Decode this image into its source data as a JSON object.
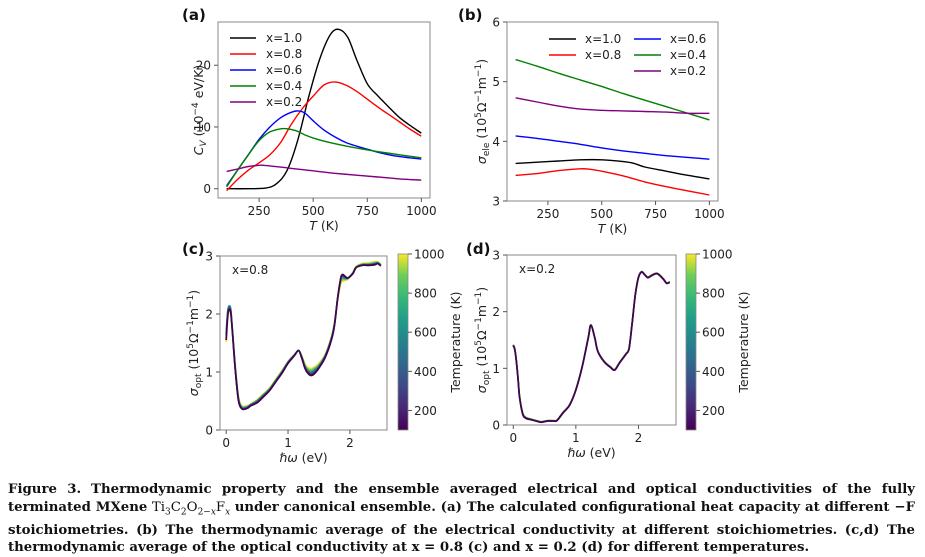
{
  "figure": {
    "caption_label": "Figure 3.",
    "caption_line1": "Thermodynamic property and the ensemble averaged electrical and optical conductivities of the fully terminated MXene",
    "caption_formula": "Ti3C2O2−xFx",
    "caption_line2": "under canonical ensemble. (a) The calculated configurational heat capacity at different −F stoichiometries. (b) The thermodynamic average of the electrical conductivity at different stoichiometries. (c,d) The thermodynamic average of the optical conductivity at x = 0.8 (c) and x = 0.2 (d) for different temperatures."
  },
  "colors": {
    "x1.0": "#000000",
    "x0.8": "#ff0000",
    "x0.6": "#0000ff",
    "x0.4": "#008000",
    "x0.2": "#800080"
  },
  "chart_data": [
    {
      "panel": "(a)",
      "type": "line",
      "xlabel": "T (K)",
      "ylabel": "C_V (10^-4 eV/K)",
      "xlim": [
        60,
        1040
      ],
      "ylim": [
        -1.5,
        27
      ],
      "xticks": [
        250,
        500,
        750,
        1000
      ],
      "yticks": [
        0,
        10,
        20
      ],
      "legend": "top-left",
      "series": [
        {
          "name": "x=1.0",
          "color": "#000000",
          "x": [
            100,
            200,
            280,
            330,
            380,
            430,
            480,
            530,
            580,
            620,
            660,
            700,
            750,
            800,
            850,
            900,
            950,
            1000
          ],
          "y": [
            0,
            0,
            0.1,
            0.8,
            3,
            8,
            15,
            21,
            25,
            25.8,
            24.5,
            21,
            17,
            15,
            13.2,
            11.5,
            10.2,
            9
          ]
        },
        {
          "name": "x=0.8",
          "color": "#ff0000",
          "x": [
            100,
            150,
            200,
            250,
            300,
            350,
            400,
            450,
            500,
            550,
            600,
            650,
            700,
            750,
            800,
            850,
            900,
            950,
            1000
          ],
          "y": [
            -0.3,
            1.5,
            3,
            4.2,
            5.5,
            7.5,
            10.5,
            13,
            15,
            16.8,
            17.3,
            16.8,
            15.8,
            14.5,
            13.2,
            12,
            10.8,
            9.6,
            8.5
          ]
        },
        {
          "name": "x=0.6",
          "color": "#0000ff",
          "x": [
            100,
            150,
            200,
            250,
            300,
            350,
            400,
            430,
            460,
            500,
            550,
            600,
            650,
            700,
            750,
            800,
            850,
            900,
            950,
            1000
          ],
          "y": [
            0.5,
            3,
            5.5,
            8,
            10,
            11.5,
            12.4,
            12.6,
            12.3,
            11,
            9.5,
            8.4,
            7.5,
            6.9,
            6.4,
            5.9,
            5.5,
            5.2,
            5,
            4.8
          ]
        },
        {
          "name": "x=0.4",
          "color": "#008000",
          "x": [
            100,
            150,
            200,
            250,
            300,
            350,
            380,
            420,
            470,
            520,
            600,
            700,
            800,
            900,
            1000
          ],
          "y": [
            0.3,
            3,
            5.5,
            7.8,
            9.2,
            9.7,
            9.7,
            9.4,
            8.6,
            8,
            7.3,
            6.6,
            6,
            5.5,
            5
          ]
        },
        {
          "name": "x=0.2",
          "color": "#800080",
          "x": [
            100,
            150,
            200,
            250,
            270,
            300,
            400,
            500,
            600,
            700,
            800,
            900,
            1000
          ],
          "y": [
            2.8,
            3.2,
            3.6,
            3.8,
            3.8,
            3.7,
            3.3,
            2.9,
            2.5,
            2.2,
            1.9,
            1.6,
            1.4
          ]
        }
      ]
    },
    {
      "panel": "(b)",
      "type": "line",
      "xlabel": "T (K)",
      "ylabel": "σ_ele (10^5 Ω^-1 m^-1)",
      "xlim": [
        60,
        1040
      ],
      "ylim": [
        3,
        6
      ],
      "xticks": [
        250,
        500,
        750,
        1000
      ],
      "yticks": [
        3,
        4,
        5,
        6
      ],
      "legend": "top-right",
      "series": [
        {
          "name": "x=1.0",
          "color": "#000000",
          "x": [
            100,
            200,
            300,
            400,
            500,
            600,
            650,
            700,
            800,
            900,
            1000
          ],
          "y": [
            3.63,
            3.65,
            3.67,
            3.69,
            3.69,
            3.66,
            3.63,
            3.57,
            3.5,
            3.43,
            3.37
          ]
        },
        {
          "name": "x=0.8",
          "color": "#ff0000",
          "x": [
            100,
            200,
            300,
            400,
            450,
            500,
            600,
            700,
            800,
            900,
            1000
          ],
          "y": [
            3.43,
            3.46,
            3.51,
            3.54,
            3.53,
            3.5,
            3.42,
            3.32,
            3.24,
            3.17,
            3.1
          ]
        },
        {
          "name": "x=0.6",
          "color": "#0000ff",
          "x": [
            100,
            200,
            300,
            400,
            500,
            600,
            700,
            800,
            900,
            1000
          ],
          "y": [
            4.09,
            4.05,
            4.0,
            3.95,
            3.89,
            3.84,
            3.8,
            3.76,
            3.73,
            3.7
          ]
        },
        {
          "name": "x=0.4",
          "color": "#008000",
          "x": [
            100,
            200,
            300,
            400,
            500,
            600,
            700,
            800,
            900,
            1000
          ],
          "y": [
            5.37,
            5.26,
            5.14,
            5.03,
            4.92,
            4.8,
            4.69,
            4.58,
            4.47,
            4.36
          ]
        },
        {
          "name": "x=0.2",
          "color": "#800080",
          "x": [
            100,
            200,
            300,
            400,
            500,
            600,
            700,
            800,
            900,
            1000
          ],
          "y": [
            4.73,
            4.66,
            4.59,
            4.54,
            4.52,
            4.51,
            4.5,
            4.49,
            4.47,
            4.47
          ]
        }
      ]
    },
    {
      "panel": "(c)",
      "type": "line",
      "annotation": "x=0.8",
      "xlabel": "ℏω (eV)",
      "ylabel": "σ_opt (10^5 Ω^-1 m^-1)",
      "xlim": [
        -0.1,
        2.6
      ],
      "ylim": [
        0,
        3
      ],
      "xticks": [
        0,
        1,
        2
      ],
      "yticks": [
        0,
        1,
        2,
        3
      ],
      "colorbar": {
        "label": "Temperature (K)",
        "range": [
          100,
          1000
        ],
        "ticks": [
          200,
          400,
          600,
          800,
          1000
        ],
        "colormap": "viridis"
      },
      "series": [
        {
          "name": "T=100K",
          "temperature": 100,
          "x": [
            0,
            0.03,
            0.07,
            0.1,
            0.15,
            0.2,
            0.25,
            0.3,
            0.35,
            0.4,
            0.5,
            0.6,
            0.7,
            0.8,
            0.9,
            1.0,
            1.1,
            1.17,
            1.22,
            1.28,
            1.35,
            1.4,
            1.45,
            1.5,
            1.6,
            1.7,
            1.75,
            1.8,
            1.85,
            1.88,
            1.92,
            1.97,
            2.05,
            2.1,
            2.2,
            2.3,
            2.4,
            2.45,
            2.5
          ],
          "y": [
            1.55,
            2.0,
            2.05,
            1.7,
            1.0,
            0.5,
            0.37,
            0.36,
            0.38,
            0.42,
            0.47,
            0.57,
            0.68,
            0.83,
            0.98,
            1.15,
            1.28,
            1.37,
            1.25,
            1.05,
            0.95,
            0.95,
            1.0,
            1.07,
            1.25,
            1.55,
            1.8,
            2.25,
            2.6,
            2.68,
            2.65,
            2.62,
            2.7,
            2.8,
            2.84,
            2.84,
            2.85,
            2.87,
            2.83
          ]
        },
        {
          "name": "T=550K",
          "temperature": 550,
          "x": [
            0,
            0.03,
            0.07,
            0.1,
            0.15,
            0.2,
            0.25,
            0.3,
            0.35,
            0.4,
            0.5,
            0.6,
            0.7,
            0.8,
            0.9,
            1.0,
            1.1,
            1.17,
            1.22,
            1.28,
            1.35,
            1.4,
            1.45,
            1.5,
            1.6,
            1.7,
            1.75,
            1.8,
            1.85,
            1.88,
            1.92,
            1.97,
            2.05,
            2.1,
            2.2,
            2.3,
            2.4,
            2.45,
            2.5
          ],
          "y": [
            1.65,
            2.08,
            2.1,
            1.72,
            1.03,
            0.53,
            0.39,
            0.38,
            0.4,
            0.44,
            0.5,
            0.6,
            0.7,
            0.85,
            1.0,
            1.17,
            1.29,
            1.37,
            1.27,
            1.08,
            1.0,
            1.01,
            1.05,
            1.1,
            1.28,
            1.58,
            1.82,
            2.25,
            2.58,
            2.64,
            2.62,
            2.62,
            2.71,
            2.8,
            2.85,
            2.85,
            2.87,
            2.88,
            2.84
          ]
        },
        {
          "name": "T=1000K",
          "temperature": 1000,
          "x": [
            0,
            0.03,
            0.07,
            0.1,
            0.15,
            0.2,
            0.25,
            0.3,
            0.35,
            0.4,
            0.5,
            0.6,
            0.7,
            0.8,
            0.9,
            1.0,
            1.1,
            1.17,
            1.22,
            1.28,
            1.35,
            1.4,
            1.45,
            1.5,
            1.6,
            1.7,
            1.75,
            1.8,
            1.85,
            1.88,
            1.92,
            1.97,
            2.05,
            2.1,
            2.2,
            2.3,
            2.4,
            2.45,
            2.5
          ],
          "y": [
            1.52,
            1.98,
            2.02,
            1.7,
            1.05,
            0.56,
            0.42,
            0.41,
            0.42,
            0.45,
            0.52,
            0.62,
            0.72,
            0.87,
            1.02,
            1.18,
            1.3,
            1.36,
            1.28,
            1.12,
            1.06,
            1.07,
            1.1,
            1.15,
            1.3,
            1.6,
            1.84,
            2.22,
            2.52,
            2.56,
            2.58,
            2.6,
            2.72,
            2.82,
            2.87,
            2.88,
            2.9,
            2.9,
            2.86
          ]
        }
      ]
    },
    {
      "panel": "(d)",
      "type": "line",
      "annotation": "x=0.2",
      "xlabel": "ℏω (eV)",
      "ylabel": "σ_opt (10^5 Ω^-1 m^-1)",
      "xlim": [
        -0.1,
        2.6
      ],
      "ylim": [
        0,
        3
      ],
      "xticks": [
        0,
        1,
        2
      ],
      "yticks": [
        0,
        1,
        2,
        3
      ],
      "colorbar": {
        "label": "Temperature (K)",
        "range": [
          100,
          1000
        ],
        "ticks": [
          200,
          400,
          600,
          800,
          1000
        ],
        "colormap": "viridis"
      },
      "series": [
        {
          "name": "T=100K",
          "temperature": 100,
          "x": [
            0,
            0.03,
            0.07,
            0.1,
            0.15,
            0.2,
            0.3,
            0.4,
            0.45,
            0.55,
            0.65,
            0.7,
            0.8,
            0.9,
            1.0,
            1.1,
            1.2,
            1.24,
            1.3,
            1.35,
            1.45,
            1.55,
            1.62,
            1.7,
            1.8,
            1.85,
            1.9,
            1.95,
            2.0,
            2.05,
            2.1,
            2.15,
            2.2,
            2.3,
            2.4,
            2.45,
            2.5
          ],
          "y": [
            1.4,
            1.3,
            0.9,
            0.5,
            0.2,
            0.12,
            0.09,
            0.06,
            0.05,
            0.07,
            0.07,
            0.08,
            0.22,
            0.35,
            0.62,
            1.02,
            1.55,
            1.76,
            1.55,
            1.3,
            1.12,
            1.02,
            0.97,
            1.1,
            1.25,
            1.35,
            1.8,
            2.3,
            2.6,
            2.7,
            2.65,
            2.6,
            2.63,
            2.67,
            2.57,
            2.5,
            2.52
          ]
        },
        {
          "name": "T=1000K",
          "temperature": 1000,
          "x": [
            0,
            0.03,
            0.07,
            0.1,
            0.15,
            0.2,
            0.3,
            0.4,
            0.45,
            0.55,
            0.65,
            0.7,
            0.8,
            0.9,
            1.0,
            1.1,
            1.2,
            1.24,
            1.3,
            1.35,
            1.45,
            1.55,
            1.62,
            1.7,
            1.8,
            1.85,
            1.9,
            1.95,
            2.0,
            2.05,
            2.1,
            2.15,
            2.2,
            2.3,
            2.4,
            2.45,
            2.5
          ],
          "y": [
            1.42,
            1.32,
            0.92,
            0.52,
            0.22,
            0.14,
            0.1,
            0.07,
            0.06,
            0.08,
            0.08,
            0.09,
            0.23,
            0.36,
            0.63,
            1.03,
            1.56,
            1.77,
            1.56,
            1.31,
            1.13,
            1.03,
            0.98,
            1.11,
            1.26,
            1.36,
            1.81,
            2.31,
            2.61,
            2.71,
            2.66,
            2.61,
            2.64,
            2.68,
            2.58,
            2.51,
            2.53
          ]
        }
      ]
    }
  ]
}
